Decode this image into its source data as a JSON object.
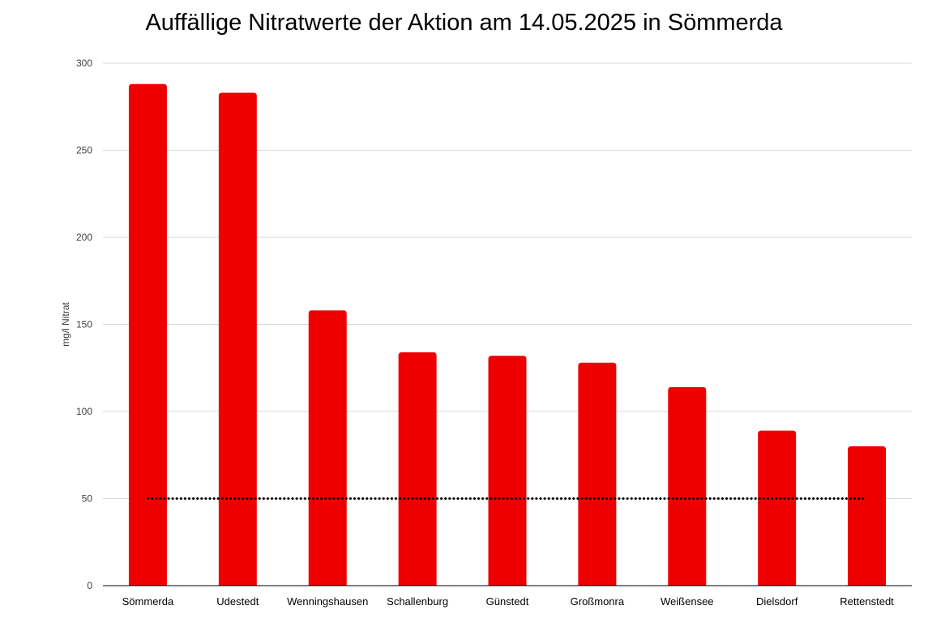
{
  "chart_data": {
    "type": "bar",
    "title": "Auffällige Nitratwerte der Aktion am 14.05.2025 in Sömmerda",
    "xlabel": "",
    "ylabel": "mg/l Nitrat",
    "ylim": [
      0,
      300
    ],
    "yticks": [
      0,
      50,
      100,
      150,
      200,
      250,
      300
    ],
    "grid": true,
    "bar_color": "#EE0000",
    "categories": [
      "Sömmerda",
      "Udestedt",
      "Wenningshausen",
      "Schallenburg",
      "Günstedt",
      "Großmonra",
      "Weißensee",
      "Dielsdorf",
      "Rettenstedt"
    ],
    "values": [
      288,
      283,
      158,
      134,
      132,
      128,
      114,
      89,
      80
    ],
    "reference_line": {
      "value": 50,
      "style": "dotted",
      "color": "#000000"
    }
  }
}
